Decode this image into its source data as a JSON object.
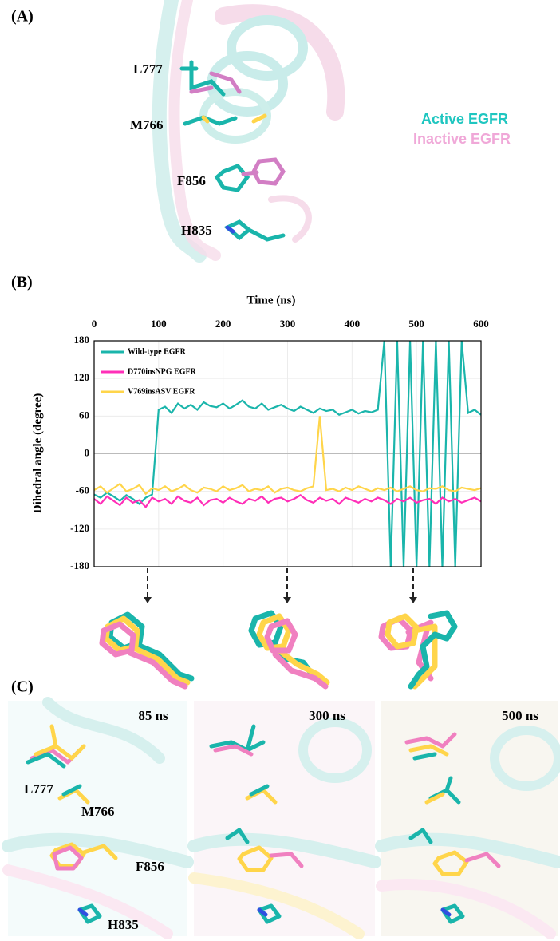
{
  "panels": {
    "a": {
      "label": "(A)",
      "residues": [
        "L777",
        "M766",
        "F856",
        "H835"
      ],
      "legend": [
        "Active EGFR",
        "Inactive EGFR"
      ]
    },
    "b": {
      "label": "(B)"
    },
    "c": {
      "label": "(C)",
      "times": [
        "85 ns",
        "300 ns",
        "500 ns"
      ],
      "residues": [
        "L777",
        "M766",
        "F856",
        "H835"
      ]
    }
  },
  "chart_data": {
    "type": "line",
    "xlabel": "Time (ns)",
    "ylabel": "Dihedral angle (degree)",
    "x": [
      0,
      10,
      20,
      30,
      40,
      50,
      60,
      70,
      80,
      90,
      100,
      110,
      120,
      130,
      140,
      150,
      160,
      170,
      180,
      190,
      200,
      210,
      220,
      230,
      240,
      250,
      260,
      270,
      280,
      290,
      300,
      310,
      320,
      330,
      340,
      350,
      360,
      370,
      380,
      390,
      400,
      410,
      420,
      430,
      440,
      450,
      460,
      470,
      480,
      490,
      500,
      510,
      520,
      530,
      540,
      550,
      560,
      570,
      580,
      590,
      600
    ],
    "series": [
      {
        "name": "Wild-type EGFR",
        "color": "#1ab5ab",
        "values": [
          -65,
          -70,
          -62,
          -68,
          -75,
          -66,
          -72,
          -80,
          -70,
          -65,
          70,
          75,
          65,
          80,
          72,
          78,
          70,
          82,
          76,
          74,
          80,
          72,
          78,
          85,
          75,
          72,
          80,
          70,
          74,
          78,
          72,
          68,
          75,
          70,
          65,
          72,
          68,
          70,
          62,
          66,
          70,
          64,
          68,
          66,
          70,
          180,
          -180,
          180,
          -180,
          180,
          -180,
          180,
          -180,
          180,
          -180,
          180,
          -180,
          180,
          65,
          70,
          62
        ]
      },
      {
        "name": "D770insNPG EGFR",
        "color": "#ff2fb8",
        "values": [
          -72,
          -80,
          -68,
          -75,
          -82,
          -70,
          -78,
          -74,
          -85,
          -70,
          -76,
          -72,
          -80,
          -68,
          -75,
          -78,
          -70,
          -82,
          -74,
          -72,
          -78,
          -70,
          -76,
          -80,
          -72,
          -75,
          -68,
          -78,
          -72,
          -70,
          -76,
          -72,
          -66,
          -74,
          -78,
          -70,
          -75,
          -72,
          -80,
          -70,
          -74,
          -78,
          -72,
          -76,
          -70,
          -74,
          -80,
          -72,
          -76,
          -70,
          -78,
          -74,
          -72,
          -80,
          -70,
          -76,
          -72,
          -78,
          -74,
          -70,
          -76
        ]
      },
      {
        "name": "V769insASV EGFR",
        "color": "#ffd54a",
        "values": [
          -58,
          -52,
          -62,
          -55,
          -48,
          -60,
          -56,
          -50,
          -64,
          -55,
          -58,
          -52,
          -60,
          -56,
          -50,
          -58,
          -62,
          -54,
          -56,
          -60,
          -52,
          -58,
          -55,
          -50,
          -60,
          -56,
          -58,
          -52,
          -62,
          -56,
          -54,
          -58,
          -60,
          -55,
          -52,
          60,
          -58,
          -56,
          -60,
          -54,
          -58,
          -52,
          -56,
          -60,
          -55,
          -58,
          -54,
          -60,
          -56,
          -52,
          -58,
          -60,
          -55,
          -56,
          -52,
          -58,
          -60,
          -54,
          -56,
          -58,
          -55
        ]
      }
    ],
    "xlim": [
      0,
      600
    ],
    "ylim": [
      -180,
      180
    ],
    "xticks": [
      0,
      100,
      200,
      300,
      400,
      500,
      600
    ],
    "yticks": [
      -180,
      -120,
      -60,
      0,
      60,
      120,
      180
    ],
    "grid": true,
    "legend": "upper left"
  }
}
